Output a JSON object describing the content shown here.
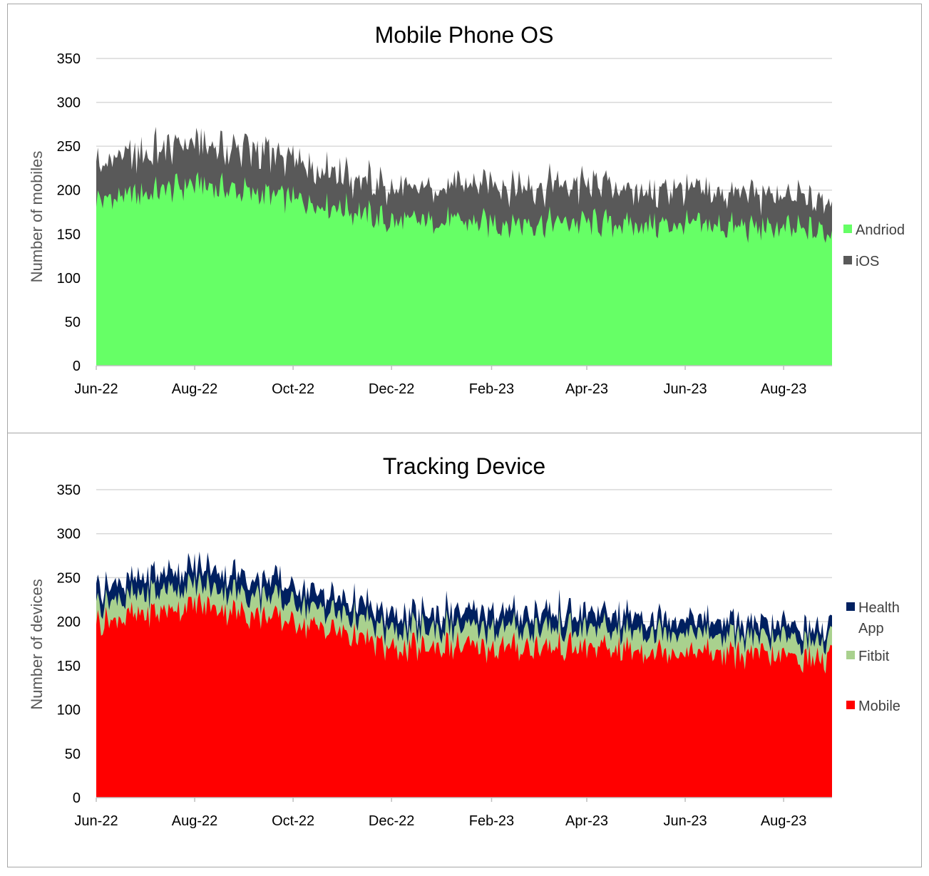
{
  "chart_data": [
    {
      "type": "area",
      "stacked": true,
      "title": "Mobile Phone OS",
      "xlabel": "",
      "ylabel": "Number of mobiles",
      "ylim": [
        0,
        350
      ],
      "yticks": [
        "0",
        "50",
        "100",
        "150",
        "200",
        "250",
        "300",
        "350"
      ],
      "x_start": "2022-06-01",
      "x_end": "2023-08-31",
      "xticks": [
        {
          "label": "Jun-22",
          "date": "2022-06-01"
        },
        {
          "label": "Aug-22",
          "date": "2022-08-01"
        },
        {
          "label": "Oct-22",
          "date": "2022-10-01"
        },
        {
          "label": "Dec-22",
          "date": "2022-12-01"
        },
        {
          "label": "Feb-23",
          "date": "2023-02-01"
        },
        {
          "label": "Apr-23",
          "date": "2023-04-01"
        },
        {
          "label": "Jun-23",
          "date": "2023-06-01"
        },
        {
          "label": "Aug-23",
          "date": "2023-08-01"
        }
      ],
      "grid": true,
      "legend_position": "right",
      "series": [
        {
          "name": "Andriod",
          "color": "#66ff66",
          "keypoints": [
            {
              "date": "2022-06-01",
              "value": 188
            },
            {
              "date": "2022-07-01",
              "value": 196
            },
            {
              "date": "2022-08-01",
              "value": 207
            },
            {
              "date": "2022-09-01",
              "value": 198
            },
            {
              "date": "2022-10-01",
              "value": 190
            },
            {
              "date": "2022-11-01",
              "value": 180
            },
            {
              "date": "2022-12-01",
              "value": 163
            },
            {
              "date": "2023-01-01",
              "value": 165
            },
            {
              "date": "2023-02-01",
              "value": 162
            },
            {
              "date": "2023-03-01",
              "value": 163
            },
            {
              "date": "2023-04-01",
              "value": 163
            },
            {
              "date": "2023-05-01",
              "value": 160
            },
            {
              "date": "2023-06-01",
              "value": 160
            },
            {
              "date": "2023-07-01",
              "value": 158
            },
            {
              "date": "2023-08-01",
              "value": 155
            },
            {
              "date": "2023-08-31",
              "value": 152
            }
          ]
        },
        {
          "name": "iOS",
          "color": "#595959",
          "keypoints": [
            {
              "date": "2022-06-01",
              "value": 42
            },
            {
              "date": "2022-07-01",
              "value": 45
            },
            {
              "date": "2022-08-01",
              "value": 47
            },
            {
              "date": "2022-09-01",
              "value": 48
            },
            {
              "date": "2022-10-01",
              "value": 45
            },
            {
              "date": "2022-11-01",
              "value": 40
            },
            {
              "date": "2022-12-01",
              "value": 38
            },
            {
              "date": "2023-01-01",
              "value": 40
            },
            {
              "date": "2023-02-01",
              "value": 43
            },
            {
              "date": "2023-03-01",
              "value": 43
            },
            {
              "date": "2023-04-01",
              "value": 43
            },
            {
              "date": "2023-05-01",
              "value": 42
            },
            {
              "date": "2023-06-01",
              "value": 40
            },
            {
              "date": "2023-07-01",
              "value": 38
            },
            {
              "date": "2023-08-01",
              "value": 37
            },
            {
              "date": "2023-08-31",
              "value": 36
            }
          ]
        }
      ]
    },
    {
      "type": "area",
      "stacked": true,
      "title": "Tracking Device",
      "xlabel": "",
      "ylabel": "Number of devices",
      "ylim": [
        0,
        350
      ],
      "yticks": [
        "0",
        "50",
        "100",
        "150",
        "200",
        "250",
        "300",
        "350"
      ],
      "x_start": "2022-06-01",
      "x_end": "2023-08-31",
      "xticks": [
        {
          "label": "Jun-22",
          "date": "2022-06-01"
        },
        {
          "label": "Aug-22",
          "date": "2022-08-01"
        },
        {
          "label": "Oct-22",
          "date": "2022-10-01"
        },
        {
          "label": "Dec-22",
          "date": "2022-12-01"
        },
        {
          "label": "Feb-23",
          "date": "2023-02-01"
        },
        {
          "label": "Apr-23",
          "date": "2023-04-01"
        },
        {
          "label": "Jun-23",
          "date": "2023-06-01"
        },
        {
          "label": "Aug-23",
          "date": "2023-08-01"
        }
      ],
      "grid": true,
      "legend_position": "right",
      "series": [
        {
          "name": "Mobile",
          "color": "#ff0000",
          "keypoints": [
            {
              "date": "2022-06-01",
              "value": 200
            },
            {
              "date": "2022-07-01",
              "value": 208
            },
            {
              "date": "2022-08-01",
              "value": 220
            },
            {
              "date": "2022-09-01",
              "value": 210
            },
            {
              "date": "2022-10-01",
              "value": 200
            },
            {
              "date": "2022-11-01",
              "value": 188
            },
            {
              "date": "2022-12-01",
              "value": 168
            },
            {
              "date": "2023-01-01",
              "value": 172
            },
            {
              "date": "2023-02-01",
              "value": 170
            },
            {
              "date": "2023-03-01",
              "value": 171
            },
            {
              "date": "2023-04-01",
              "value": 170
            },
            {
              "date": "2023-05-01",
              "value": 168
            },
            {
              "date": "2023-06-01",
              "value": 167
            },
            {
              "date": "2023-07-01",
              "value": 163
            },
            {
              "date": "2023-08-01",
              "value": 160
            },
            {
              "date": "2023-08-31",
              "value": 156
            }
          ]
        },
        {
          "name": "Fitbit",
          "color": "#a9d18e",
          "keypoints": [
            {
              "date": "2022-06-01",
              "value": 22
            },
            {
              "date": "2022-07-01",
              "value": 22
            },
            {
              "date": "2022-08-01",
              "value": 22
            },
            {
              "date": "2022-09-01",
              "value": 22
            },
            {
              "date": "2022-10-01",
              "value": 22
            },
            {
              "date": "2022-11-01",
              "value": 21
            },
            {
              "date": "2022-12-01",
              "value": 21
            },
            {
              "date": "2023-01-01",
              "value": 21
            },
            {
              "date": "2023-02-01",
              "value": 21
            },
            {
              "date": "2023-03-01",
              "value": 21
            },
            {
              "date": "2023-04-01",
              "value": 21
            },
            {
              "date": "2023-05-01",
              "value": 21
            },
            {
              "date": "2023-06-01",
              "value": 21
            },
            {
              "date": "2023-07-01",
              "value": 20
            },
            {
              "date": "2023-08-01",
              "value": 20
            },
            {
              "date": "2023-08-31",
              "value": 20
            }
          ]
        },
        {
          "name": "Health App",
          "color": "#002060",
          "keypoints": [
            {
              "date": "2022-06-01",
              "value": 18
            },
            {
              "date": "2022-07-01",
              "value": 19
            },
            {
              "date": "2022-08-01",
              "value": 20
            },
            {
              "date": "2022-09-01",
              "value": 20
            },
            {
              "date": "2022-10-01",
              "value": 19
            },
            {
              "date": "2022-11-01",
              "value": 18
            },
            {
              "date": "2022-12-01",
              "value": 17
            },
            {
              "date": "2023-01-01",
              "value": 18
            },
            {
              "date": "2023-02-01",
              "value": 18
            },
            {
              "date": "2023-03-01",
              "value": 18
            },
            {
              "date": "2023-04-01",
              "value": 18
            },
            {
              "date": "2023-05-01",
              "value": 17
            },
            {
              "date": "2023-06-01",
              "value": 17
            },
            {
              "date": "2023-07-01",
              "value": 16
            },
            {
              "date": "2023-08-01",
              "value": 16
            },
            {
              "date": "2023-08-31",
              "value": 15
            }
          ]
        }
      ]
    }
  ]
}
